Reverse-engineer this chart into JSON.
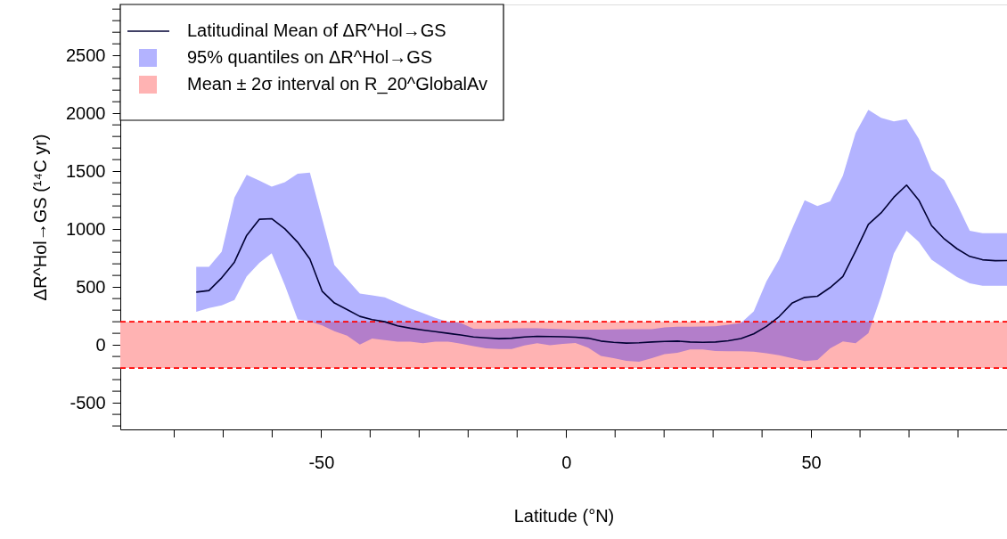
{
  "chart_data": {
    "type": "line",
    "xlabel": "Latitude (°N)",
    "ylabel": "ΔR^Hol→GS (¹⁴C yr)",
    "xlim": [
      -91,
      90
    ],
    "xticks": [
      {
        "value": -80,
        "label": null
      },
      {
        "value": -70,
        "label": null
      },
      {
        "value": -60,
        "label": null
      },
      -50,
      {
        "value": -40,
        "label": null
      },
      {
        "value": -30,
        "label": null
      },
      {
        "value": -20,
        "label": null
      },
      {
        "value": -10,
        "label": null
      },
      0,
      {
        "value": 10,
        "label": null
      },
      {
        "value": 20,
        "label": null
      },
      {
        "value": 30,
        "label": null
      },
      {
        "value": 40,
        "label": null
      },
      50,
      {
        "value": 60,
        "label": null
      },
      {
        "value": 70,
        "label": null
      },
      {
        "value": 80,
        "label": null
      }
    ],
    "ylim": [
      -730,
      2940
    ],
    "yticks": [
      {
        "value": -700,
        "label": null
      },
      {
        "value": -600,
        "label": null
      },
      -500,
      {
        "value": -400,
        "label": null
      },
      {
        "value": -300,
        "label": null
      },
      {
        "value": -200,
        "label": null
      },
      {
        "value": -100,
        "label": null
      },
      0,
      {
        "value": 100,
        "label": null
      },
      {
        "value": 200,
        "label": null
      },
      {
        "value": 300,
        "label": null
      },
      {
        "value": 400,
        "label": null
      },
      500,
      {
        "value": 600,
        "label": null
      },
      {
        "value": 700,
        "label": null
      },
      {
        "value": 800,
        "label": null
      },
      {
        "value": 900,
        "label": null
      },
      1000,
      {
        "value": 1100,
        "label": null
      },
      {
        "value": 1200,
        "label": null
      },
      {
        "value": 1300,
        "label": null
      },
      {
        "value": 1400,
        "label": null
      },
      1500,
      {
        "value": 1600,
        "label": null
      },
      {
        "value": 1700,
        "label": null
      },
      {
        "value": 1800,
        "label": null
      },
      {
        "value": 1900,
        "label": null
      },
      2000,
      {
        "value": 2100,
        "label": null
      },
      {
        "value": 2200,
        "label": null
      },
      {
        "value": 2300,
        "label": null
      },
      {
        "value": 2400,
        "label": null
      },
      2500,
      {
        "value": 2600,
        "label": null
      },
      {
        "value": 2700,
        "label": null
      },
      {
        "value": 2800,
        "label": null
      },
      {
        "value": 2900,
        "label": null
      }
    ],
    "grid": false,
    "legend": "top left",
    "series": [
      {
        "name": "Latitudinal Mean of ΔR^Hol→GS",
        "color": "#000033",
        "line_style": "solid",
        "x": [
          -75.5,
          -72.9,
          -70.3,
          -67.7,
          -65.2,
          -62.6,
          -60.1,
          -57.4,
          -54.8,
          -52.3,
          -49.8,
          -47.3,
          -44.7,
          -42.1,
          -39.6,
          -37.0,
          -34.4,
          -31.8,
          -29.2,
          -26.7,
          -24.1,
          -21.5,
          -18.9,
          -16.3,
          -13.7,
          -11.1,
          -8.5,
          -5.9,
          -3.3,
          -0.7,
          1.9,
          4.5,
          7.1,
          9.7,
          12.3,
          14.9,
          17.5,
          20.1,
          22.7,
          25.3,
          27.9,
          30.5,
          33.1,
          35.7,
          38.3,
          40.9,
          43.5,
          46.1,
          48.7,
          51.3,
          53.9,
          56.5,
          59.1,
          61.7,
          64.3,
          66.9,
          69.5,
          72.0,
          74.6,
          77.2,
          79.8,
          82.4,
          85.0,
          87.6,
          90
        ],
        "values": [
          456,
          469,
          579,
          715,
          946,
          1085,
          1090,
          1002,
          887,
          741,
          464,
          362,
          305,
          246,
          218,
          200,
          164,
          144,
          128,
          115,
          100,
          85,
          68,
          60,
          54,
          58,
          68,
          74,
          72,
          70,
          66,
          58,
          33,
          22,
          15,
          18,
          25,
          30,
          33,
          25,
          22,
          25,
          35,
          55,
          95,
          160,
          245,
          360,
          410,
          420,
          495,
          590,
          810,
          1040,
          1140,
          1275,
          1380,
          1250,
          1030,
          915,
          830,
          764,
          735,
          727,
          728
        ],
        "lower": [
          285,
          318,
          341,
          387,
          592,
          708,
          792,
          515,
          220,
          202,
          169,
          118,
          79,
          2,
          54,
          41,
          28,
          28,
          15,
          28,
          28,
          11,
          -10,
          -30,
          -36,
          -36,
          -5,
          15,
          -3,
          8,
          16,
          -25,
          -95,
          -115,
          -138,
          -146,
          -115,
          -80,
          -69,
          -40,
          -40,
          -52,
          -54,
          -54,
          -58,
          -72,
          -90,
          -115,
          -140,
          -130,
          -30,
          30,
          15,
          100,
          420,
          790,
          985,
          890,
          735,
          660,
          585,
          532,
          510,
          510,
          510
        ],
        "upper": [
          674,
          674,
          805,
          1272,
          1469,
          1418,
          1367,
          1405,
          1479,
          1487,
          1090,
          690,
          567,
          444,
          427,
          410,
          362,
          315,
          274,
          233,
          200,
          190,
          140,
          138,
          140,
          142,
          144,
          144,
          140,
          135,
          131,
          131,
          132,
          134,
          135,
          136,
          136,
          150,
          156,
          156,
          158,
          160,
          175,
          190,
          290,
          550,
          740,
          1000,
          1250,
          1200,
          1240,
          1460,
          1830,
          2030,
          1960,
          1930,
          1950,
          1780,
          1510,
          1422,
          1215,
          985,
          964,
          964,
          964
        ]
      },
      {
        "name": "95% quantiles on ΔR^Hol→GS",
        "type": "area",
        "color": "#b3b3ff"
      }
    ],
    "bands": [
      {
        "axis": "y",
        "from": -200,
        "to": 200,
        "label": "Mean ± 2σ interval on R_20^GlobalAv",
        "color": "#ffb3b3"
      }
    ],
    "ref_lines": [
      {
        "axis": "y",
        "value": -200,
        "color": "#ff0000",
        "line_style": "dashed"
      },
      {
        "axis": "y",
        "value": 200,
        "color": "#ff0000",
        "line_style": "dashed"
      }
    ]
  }
}
